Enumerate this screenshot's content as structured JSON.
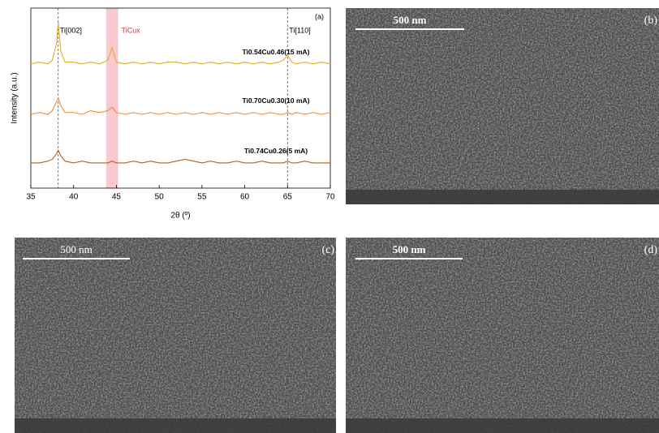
{
  "chart_data": {
    "type": "line",
    "panel_label": "(a)",
    "x_label": "2θ (º)",
    "y_label": "Intensity (a.u.)",
    "xlim": [
      35,
      70
    ],
    "xticks": [
      35,
      40,
      45,
      50,
      55,
      60,
      65,
      70
    ],
    "ylim": [
      0,
      100
    ],
    "x": [
      35,
      36,
      37,
      37.5,
      38,
      38.2,
      38.5,
      39,
      40,
      41,
      42,
      43,
      44,
      44.5,
      45,
      46,
      47,
      48,
      49,
      50,
      51,
      52,
      53,
      54,
      55,
      56,
      57,
      58,
      59,
      60,
      61,
      62,
      63,
      64,
      64.5,
      65,
      65.5,
      66,
      67,
      68,
      69,
      70
    ],
    "series": [
      {
        "name": "Ti0.54Cu0.46(15 mA)",
        "color": "#e2ad22",
        "values": [
          69,
          70,
          69,
          71,
          80,
          92,
          76,
          70,
          70,
          69,
          70,
          69,
          71,
          78,
          70,
          69,
          70,
          69,
          70,
          69,
          70,
          70,
          69,
          70,
          69,
          70,
          69,
          70,
          69,
          70,
          69,
          70,
          69,
          70,
          71,
          74,
          70,
          69,
          70,
          69,
          70,
          69
        ]
      },
      {
        "name": "Ti0.70Cu0.30(10 mA)",
        "color": "#ef8a3d",
        "values": [
          41,
          42,
          41,
          43,
          48,
          50,
          46,
          42,
          42,
          41,
          43,
          42,
          43,
          45,
          42,
          41,
          42,
          41,
          42,
          41,
          42,
          41,
          42,
          41,
          42,
          41,
          42,
          41,
          42,
          41,
          42,
          41,
          42,
          41,
          41,
          42,
          41,
          42,
          41,
          42,
          41,
          42
        ]
      },
      {
        "name": "Ti0.74Cu0.26(5 mA)",
        "color": "#b3601c",
        "values": [
          14,
          14,
          15,
          16,
          19,
          21,
          18,
          15,
          14,
          15,
          14,
          14,
          14,
          15,
          14,
          14,
          15,
          14,
          15,
          14,
          14,
          15,
          16,
          15,
          14,
          15,
          14,
          14,
          15,
          14,
          14,
          15,
          14,
          14,
          14,
          15,
          14,
          14,
          15,
          14,
          14,
          14
        ]
      }
    ],
    "reference_lines": [
      {
        "x": 38.2,
        "label": "Ti[002]"
      },
      {
        "x": 65,
        "label": "Ti[110]"
      }
    ],
    "band": {
      "range": [
        43.8,
        45.2
      ],
      "label": "TiCux",
      "color": "#f9c9cf"
    }
  },
  "panels": [
    {
      "label": "(b)",
      "scale_bar": "500 nm"
    },
    {
      "label": "(c)",
      "scale_bar": "500 nm"
    },
    {
      "label": "(d)",
      "scale_bar": "500 nm"
    }
  ]
}
